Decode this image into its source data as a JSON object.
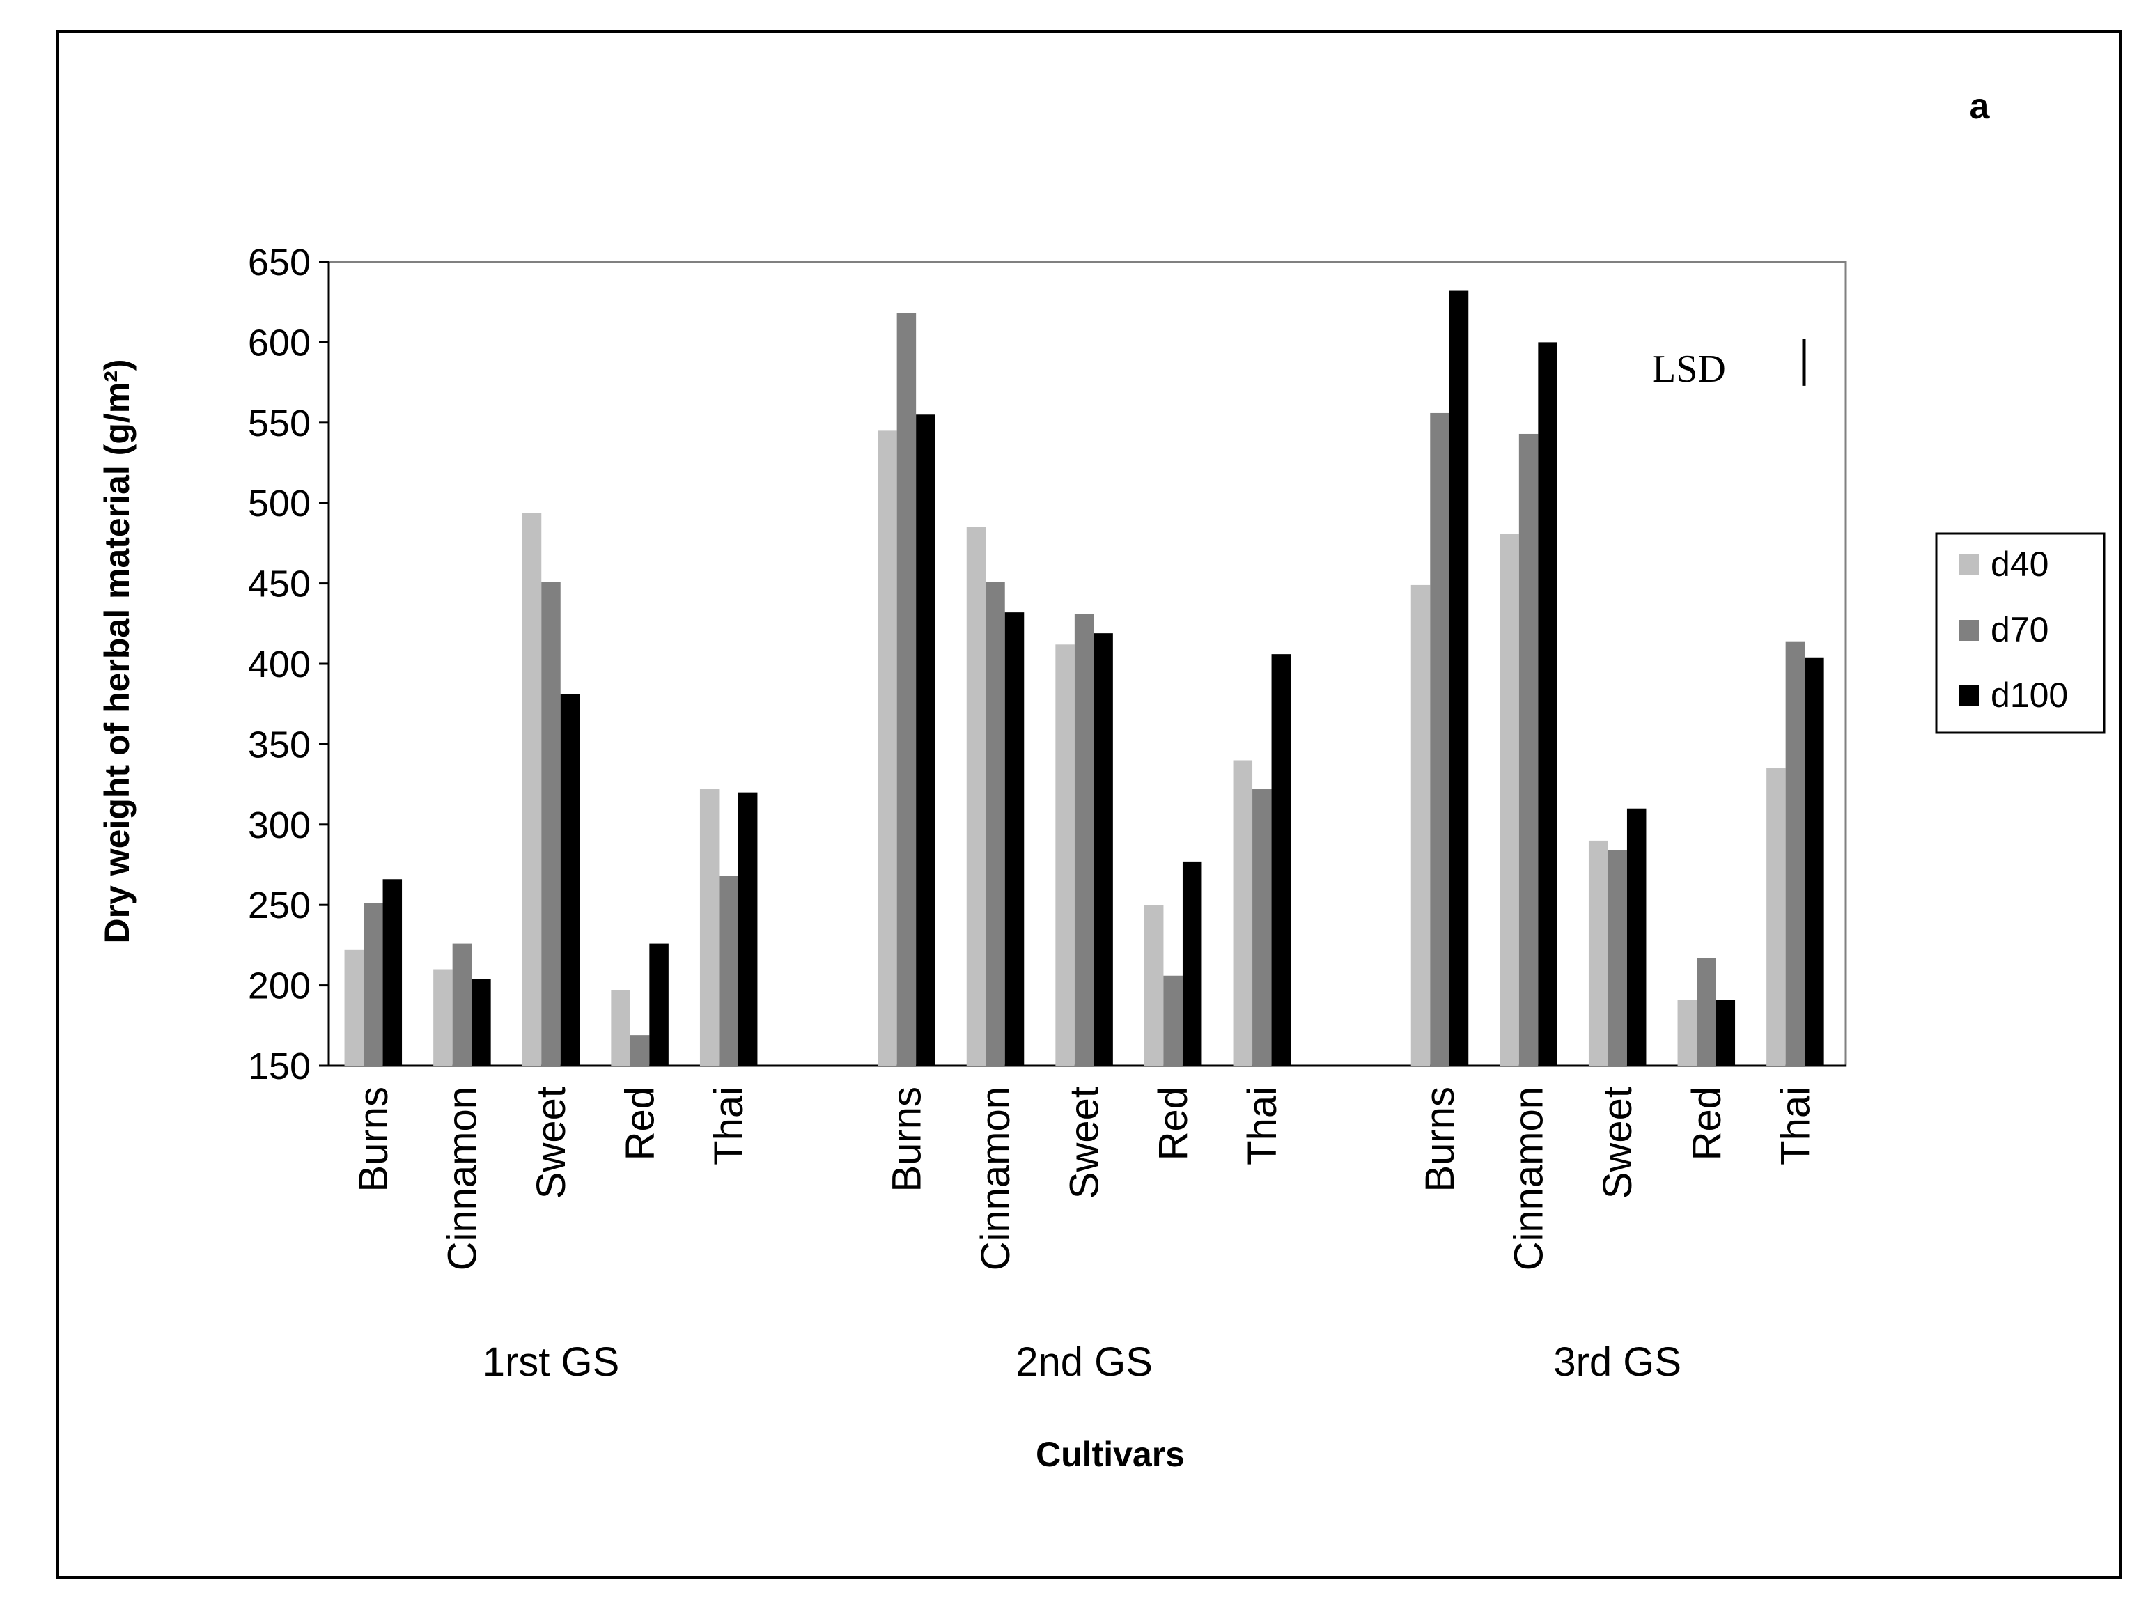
{
  "chart_data": {
    "type": "bar",
    "title": "",
    "panel_label": "a",
    "ylabel": "Dry weight of herbal material (g/m²)",
    "xlabel": "Cultivars",
    "ylim": [
      150,
      650
    ],
    "yticks": [
      150,
      200,
      250,
      300,
      350,
      400,
      450,
      500,
      550,
      600,
      650
    ],
    "grid": false,
    "legend_position": "right",
    "groups": [
      {
        "name": "1rst GS",
        "categories": [
          "Burns",
          "Cinnamon",
          "Sweet",
          "Red",
          "Thai"
        ],
        "series": [
          {
            "name": "d40",
            "values": [
              222,
              210,
              494,
              197,
              322
            ]
          },
          {
            "name": "d70",
            "values": [
              251,
              226,
              451,
              169,
              268
            ]
          },
          {
            "name": "d100",
            "values": [
              266,
              204,
              381,
              226,
              320
            ]
          }
        ]
      },
      {
        "name": "2nd GS",
        "categories": [
          "Burns",
          "Cinnamon",
          "Sweet",
          "Red",
          "Thai"
        ],
        "series": [
          {
            "name": "d40",
            "values": [
              545,
              485,
              412,
              250,
              340
            ]
          },
          {
            "name": "d70",
            "values": [
              618,
              451,
              431,
              206,
              322
            ]
          },
          {
            "name": "d100",
            "values": [
              555,
              432,
              419,
              277,
              406
            ]
          }
        ]
      },
      {
        "name": "3rd GS",
        "categories": [
          "Burns",
          "Cinnamon",
          "Sweet",
          "Red",
          "Thai"
        ],
        "series": [
          {
            "name": "d40",
            "values": [
              449,
              481,
              290,
              191,
              335
            ]
          },
          {
            "name": "d70",
            "values": [
              556,
              543,
              284,
              217,
              414
            ]
          },
          {
            "name": "d100",
            "values": [
              632,
              600,
              310,
              191,
              404
            ]
          }
        ]
      }
    ],
    "legend": [
      {
        "name": "d40",
        "color": "#c0c0c0"
      },
      {
        "name": "d70",
        "color": "#808080"
      },
      {
        "name": "d100",
        "color": "#000000"
      }
    ],
    "annotation": {
      "text": "LSD",
      "bar_length": 25
    }
  }
}
